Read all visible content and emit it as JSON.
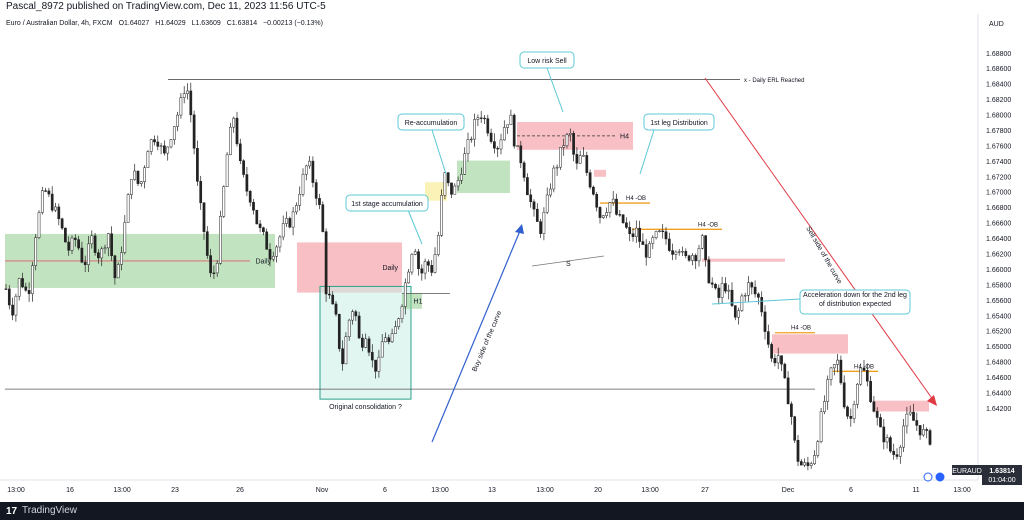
{
  "header": {
    "publisher": "Pascal_8972 published on TradingView.com, Dec 11, 2023 11:56 UTC-5"
  },
  "footer": {
    "brand": "TradingView"
  },
  "chart_data": {
    "type": "candlestick",
    "symbol_info": "Euro / Australian Dollar, 4h, FXCM",
    "ohlc": {
      "open": "O1.64027",
      "high": "H1.64029",
      "low": "L1.63609",
      "close": "C1.63814",
      "change": "−0.00213 (−0.13%)"
    },
    "currency": "AUD",
    "ticker": "EURAUD",
    "last_price": "1.63814",
    "countdown": "01:04:00",
    "ylim": [
      1.6335,
      1.6905
    ],
    "y_ticks": [
      "1.68800",
      "1.68600",
      "1.68400",
      "1.68200",
      "1.68000",
      "1.67800",
      "1.67600",
      "1.67400",
      "1.67200",
      "1.67000",
      "1.66800",
      "1.66600",
      "1.66400",
      "1.66200",
      "1.66000",
      "1.65800",
      "1.65600",
      "1.65400",
      "1.65200",
      "1.65000",
      "1.64800",
      "1.64600",
      "1.64400",
      "1.64200"
    ],
    "x_ticks": [
      "13:00",
      "16",
      "13:00",
      "23",
      "26",
      "Nov",
      "6",
      "13:00",
      "13",
      "13:00",
      "20",
      "13:00",
      "27",
      "Dec",
      "6",
      "11",
      "13:00"
    ],
    "price_path": [
      [
        0,
        1.6525
      ],
      [
        6,
        1.6575
      ],
      [
        12,
        1.6545
      ],
      [
        20,
        1.659
      ],
      [
        28,
        1.6565
      ],
      [
        36,
        1.665
      ],
      [
        44,
        1.6705
      ],
      [
        52,
        1.6685
      ],
      [
        60,
        1.666
      ],
      [
        68,
        1.6625
      ],
      [
        76,
        1.664
      ],
      [
        84,
        1.6605
      ],
      [
        92,
        1.664
      ],
      [
        100,
        1.6615
      ],
      [
        108,
        1.665
      ],
      [
        116,
        1.658
      ],
      [
        124,
        1.665
      ],
      [
        132,
        1.673
      ],
      [
        140,
        1.6705
      ],
      [
        148,
        1.676
      ],
      [
        156,
        1.6775
      ],
      [
        164,
        1.6745
      ],
      [
        172,
        1.678
      ],
      [
        180,
        1.681
      ],
      [
        186,
        1.6845
      ],
      [
        192,
        1.679
      ],
      [
        198,
        1.67
      ],
      [
        204,
        1.665
      ],
      [
        210,
        1.659
      ],
      [
        216,
        1.66
      ],
      [
        222,
        1.668
      ],
      [
        228,
        1.676
      ],
      [
        234,
        1.68
      ],
      [
        240,
        1.6735
      ],
      [
        246,
        1.6705
      ],
      [
        252,
        1.669
      ],
      [
        258,
        1.6655
      ],
      [
        264,
        1.664
      ],
      [
        270,
        1.662
      ],
      [
        276,
        1.663
      ],
      [
        284,
        1.6655
      ],
      [
        292,
        1.6665
      ],
      [
        300,
        1.6705
      ],
      [
        308,
        1.674
      ],
      [
        316,
        1.67
      ],
      [
        322,
        1.6665
      ],
      [
        326,
        1.6575
      ],
      [
        330,
        1.656
      ],
      [
        336,
        1.6535
      ],
      [
        342,
        1.6475
      ],
      [
        348,
        1.653
      ],
      [
        354,
        1.6555
      ],
      [
        360,
        1.65
      ],
      [
        366,
        1.652
      ],
      [
        372,
        1.648
      ],
      [
        378,
        1.647
      ],
      [
        384,
        1.652
      ],
      [
        390,
        1.65
      ],
      [
        396,
        1.6525
      ],
      [
        402,
        1.656
      ],
      [
        408,
        1.66
      ],
      [
        414,
        1.664
      ],
      [
        420,
        1.659
      ],
      [
        426,
        1.661
      ],
      [
        432,
        1.66
      ],
      [
        438,
        1.664
      ],
      [
        444,
        1.6725
      ],
      [
        450,
        1.67
      ],
      [
        456,
        1.6705
      ],
      [
        462,
        1.6735
      ],
      [
        468,
        1.676
      ],
      [
        474,
        1.6785
      ],
      [
        480,
        1.6805
      ],
      [
        486,
        1.679
      ],
      [
        492,
        1.677
      ],
      [
        498,
        1.676
      ],
      [
        504,
        1.6785
      ],
      [
        510,
        1.68
      ],
      [
        516,
        1.6755
      ],
      [
        522,
        1.674
      ],
      [
        528,
        1.67
      ],
      [
        534,
        1.667
      ],
      [
        540,
        1.665
      ],
      [
        546,
        1.668
      ],
      [
        552,
        1.672
      ],
      [
        558,
        1.674
      ],
      [
        564,
        1.6765
      ],
      [
        570,
        1.6775
      ],
      [
        576,
        1.673
      ],
      [
        582,
        1.675
      ],
      [
        588,
        1.672
      ],
      [
        594,
        1.67
      ],
      [
        600,
        1.667
      ],
      [
        606,
        1.668
      ],
      [
        612,
        1.669
      ],
      [
        618,
        1.6665
      ],
      [
        624,
        1.666
      ],
      [
        630,
        1.664
      ],
      [
        636,
        1.665
      ],
      [
        642,
        1.663
      ],
      [
        648,
        1.662
      ],
      [
        654,
        1.664
      ],
      [
        660,
        1.6645
      ],
      [
        666,
        1.664
      ],
      [
        672,
        1.6625
      ],
      [
        678,
        1.6635
      ],
      [
        684,
        1.661
      ],
      [
        690,
        1.662
      ],
      [
        696,
        1.662
      ],
      [
        702,
        1.664
      ],
      [
        706,
        1.66
      ],
      [
        712,
        1.658
      ],
      [
        718,
        1.656
      ],
      [
        724,
        1.6585
      ],
      [
        730,
        1.656
      ],
      [
        736,
        1.653
      ],
      [
        742,
        1.6565
      ],
      [
        748,
        1.658
      ],
      [
        754,
        1.657
      ],
      [
        760,
        1.656
      ],
      [
        766,
        1.652
      ],
      [
        772,
        1.648
      ],
      [
        778,
        1.649
      ],
      [
        784,
        1.6455
      ],
      [
        790,
        1.6425
      ],
      [
        796,
        1.636
      ],
      [
        802,
        1.6345
      ],
      [
        808,
        1.6345
      ],
      [
        814,
        1.636
      ],
      [
        820,
        1.64
      ],
      [
        826,
        1.644
      ],
      [
        832,
        1.647
      ],
      [
        838,
        1.648
      ],
      [
        844,
        1.643
      ],
      [
        850,
        1.64
      ],
      [
        856,
        1.645
      ],
      [
        862,
        1.6475
      ],
      [
        868,
        1.645
      ],
      [
        874,
        1.642
      ],
      [
        880,
        1.639
      ],
      [
        886,
        1.638
      ],
      [
        892,
        1.636
      ],
      [
        898,
        1.6365
      ],
      [
        904,
        1.64
      ],
      [
        910,
        1.641
      ],
      [
        916,
        1.64
      ],
      [
        922,
        1.639
      ],
      [
        928,
        1.6381
      ]
    ],
    "zones": [
      {
        "name": "daily-demand-left",
        "color": "#90cc8c",
        "label": "Daily",
        "price_top": 1.6646,
        "price_bottom": 1.6576,
        "x0": 5,
        "x1": 275
      },
      {
        "name": "daily-supply-mid",
        "color": "#f28b96",
        "label": "Daily",
        "price_top": 1.6635,
        "price_bottom": 1.657,
        "x0": 297,
        "x1": 402
      },
      {
        "name": "original-consolidation",
        "color": "#c8ece6",
        "label": "Original consolidation ?",
        "price_top": 1.6578,
        "price_bottom": 1.6432,
        "x0": 320,
        "x1": 411
      },
      {
        "name": "h1-zone",
        "color": "#90cc8c",
        "label": "H1",
        "price_top": 1.6569,
        "price_bottom": 1.6549,
        "x0": 402,
        "x1": 422
      },
      {
        "name": "first-stage-accumulation",
        "color": "#f5e87a",
        "label": "",
        "price_top": 1.6713,
        "price_bottom": 1.6689,
        "x0": 425,
        "x1": 447
      },
      {
        "name": "reaccumulation-zone",
        "color": "#90cc8c",
        "label": "",
        "price_top": 1.6741,
        "price_bottom": 1.6699,
        "x0": 457,
        "x1": 510
      },
      {
        "name": "h4-supply-main",
        "color": "#f28b96",
        "label": "H4",
        "price_top": 1.6791,
        "price_bottom": 1.6755,
        "x0": 517,
        "x1": 633
      },
      {
        "name": "h4-supply-small",
        "color": "#f28b96",
        "label": "",
        "price_top": 1.6729,
        "price_bottom": 1.672,
        "x0": 594,
        "x1": 606
      },
      {
        "name": "h4-supply-thin",
        "color": "#f28b96",
        "label": "",
        "price_top": 1.6614,
        "price_bottom": 1.661,
        "x0": 702,
        "x1": 785
      },
      {
        "name": "h4-supply-dec",
        "color": "#f28b96",
        "label": "",
        "price_top": 1.6516,
        "price_bottom": 1.6491,
        "x0": 772,
        "x1": 848
      },
      {
        "name": "h4-supply-last",
        "color": "#f28b96",
        "label": "",
        "price_top": 1.643,
        "price_bottom": 1.6416,
        "x0": 873,
        "x1": 929
      }
    ],
    "levels": [
      {
        "name": "daily-erl-line",
        "price": 1.6846,
        "x0": 168,
        "x1": 740,
        "color": "#555555",
        "label": "x - Daily ERL Reached"
      },
      {
        "name": "consolidation-low-line",
        "price": 1.6445,
        "x0": 5,
        "x1": 815,
        "color": "#555555",
        "label": ""
      },
      {
        "name": "h1-top-line",
        "price": 1.6569,
        "x0": 402,
        "x1": 450,
        "color": "#555555",
        "label": ""
      },
      {
        "name": "daily-mid-red-line",
        "price": 1.6611,
        "x0": 5,
        "x1": 250,
        "color": "#e05a64",
        "label": ""
      },
      {
        "name": "h4-ob-1",
        "price": 1.6686,
        "x0": 600,
        "x1": 650,
        "color": "#f0a020",
        "label": "H4 -OB"
      },
      {
        "name": "h4-ob-2",
        "price": 1.6652,
        "x0": 632,
        "x1": 722,
        "color": "#f0a020",
        "label": "H4 -OB"
      },
      {
        "name": "h4-ob-3",
        "price": 1.6518,
        "x0": 775,
        "x1": 815,
        "color": "#f0a020",
        "label": "H4 -OB"
      },
      {
        "name": "h4-ob-4",
        "price": 1.6468,
        "x0": 833,
        "x1": 878,
        "color": "#f0a020",
        "label": "H4 -OB"
      }
    ],
    "annotations": [
      {
        "name": "low-risk-sell",
        "text": "Low risk Sell"
      },
      {
        "name": "reaccumulation",
        "text": "Re-accumulation"
      },
      {
        "name": "first-leg-distribution",
        "text": "1st leg Distribution"
      },
      {
        "name": "first-stage-accumulation",
        "text": "1st stage accumulation"
      },
      {
        "name": "acceleration-note",
        "text": "Acceleration down for the 2nd leg of distribution expected"
      },
      {
        "name": "buy-side",
        "text": "Buy side of the curve"
      },
      {
        "name": "sell-side",
        "text": "Sell side of the curve"
      }
    ]
  }
}
